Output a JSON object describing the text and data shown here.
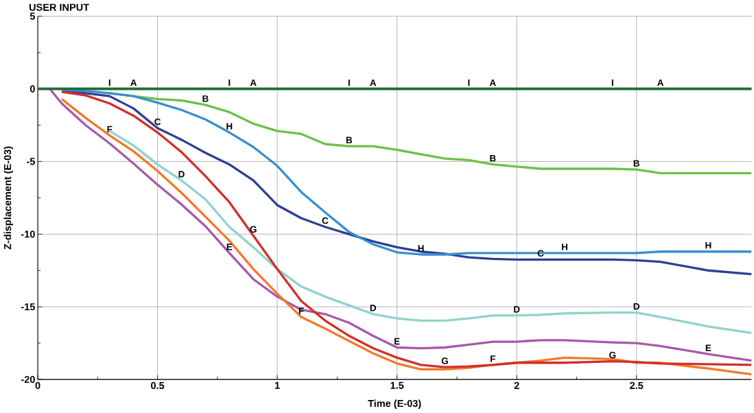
{
  "chart_data": {
    "type": "line",
    "title": "USER INPUT",
    "xlabel": "Time (E-03)",
    "ylabel": "Z-displacement (E-03)",
    "x": [
      0,
      0.05,
      0.1,
      0.2,
      0.3,
      0.4,
      0.5,
      0.6,
      0.7,
      0.8,
      0.9,
      1.0,
      1.1,
      1.2,
      1.3,
      1.4,
      1.5,
      1.6,
      1.7,
      1.8,
      1.9,
      2.0,
      2.1,
      2.2,
      2.4,
      2.5,
      2.6,
      2.8,
      2.98
    ],
    "xlim": [
      0,
      2.98
    ],
    "ylim": [
      -20,
      5
    ],
    "xticks": [
      0,
      0.5,
      1,
      1.5,
      2,
      2.5
    ],
    "yticks": [
      -20,
      -15,
      -10,
      -5,
      0,
      5
    ],
    "grid": true,
    "marker": "none",
    "line_style": "solid",
    "series": [
      {
        "name": "A",
        "color": "#1f6b32",
        "values": [
          0,
          0,
          0,
          0,
          0,
          0,
          0,
          0,
          0,
          0,
          0,
          0,
          0,
          0,
          0,
          0,
          0,
          0,
          0,
          0,
          0,
          0,
          0,
          0,
          0,
          0,
          0,
          0,
          0
        ]
      },
      {
        "name": "B",
        "color": "#6cc04a",
        "values": [
          null,
          null,
          null,
          null,
          -0.3,
          -0.5,
          -0.7,
          -0.8,
          -1.1,
          -1.6,
          -2.4,
          -2.9,
          -3.1,
          -3.8,
          -3.95,
          -3.95,
          -4.2,
          -4.5,
          -4.8,
          -4.9,
          -5.2,
          -5.35,
          -5.5,
          -5.5,
          -5.5,
          -5.55,
          -5.8,
          -5.8,
          -5.8
        ]
      },
      {
        "name": "C",
        "color": "#2e3f93",
        "values": [
          null,
          null,
          -0.1,
          -0.3,
          -0.5,
          -1.35,
          -2.7,
          -3.5,
          -4.4,
          -5.2,
          -6.3,
          -8.0,
          -8.9,
          -9.5,
          -10.0,
          -10.5,
          -10.9,
          -11.2,
          -11.35,
          -11.6,
          -11.7,
          -11.75,
          -11.75,
          -11.75,
          -11.75,
          -11.8,
          -11.9,
          -12.5,
          -12.75
        ]
      },
      {
        "name": "D",
        "color": "#8fd3cc",
        "values": [
          null,
          null,
          null,
          null,
          -2.9,
          -3.9,
          -5.2,
          -6.3,
          -7.6,
          -9.5,
          -10.9,
          -12.4,
          -13.6,
          -14.3,
          -14.9,
          -15.5,
          -15.8,
          -15.95,
          -15.95,
          -15.8,
          -15.6,
          -15.6,
          -15.55,
          -15.45,
          -15.4,
          -15.4,
          -15.7,
          -16.35,
          -16.8
        ]
      },
      {
        "name": "E",
        "color": "#a65aa8",
        "values": [
          null,
          0,
          -1.0,
          -2.5,
          -3.75,
          -5.15,
          -6.6,
          -7.95,
          -9.45,
          -11.3,
          -13.1,
          -14.3,
          -15.2,
          -15.5,
          -16.1,
          -17.0,
          -17.8,
          -17.85,
          -17.8,
          -17.6,
          -17.4,
          -17.4,
          -17.3,
          -17.3,
          -17.45,
          -17.5,
          -17.7,
          -18.25,
          -18.7
        ]
      },
      {
        "name": "F",
        "color": "#f07a2a",
        "values": [
          null,
          null,
          -0.7,
          -2.0,
          -3.2,
          -4.3,
          -5.65,
          -7.15,
          -8.8,
          -10.45,
          -12.4,
          -14.1,
          -15.7,
          -16.5,
          -17.35,
          -18.2,
          -18.9,
          -19.3,
          -19.3,
          -19.2,
          -19.0,
          -18.85,
          -18.7,
          -18.5,
          -18.6,
          -18.85,
          -18.85,
          -19.25,
          -19.65
        ]
      },
      {
        "name": "G",
        "color": "#d12f2a",
        "values": [
          null,
          null,
          -0.2,
          -0.45,
          -1.0,
          -1.85,
          -3.0,
          -4.35,
          -6.0,
          -7.8,
          -10.1,
          -12.4,
          -14.6,
          -15.95,
          -17.0,
          -17.85,
          -18.5,
          -19.0,
          -19.15,
          -19.1,
          -19.0,
          -18.85,
          -18.85,
          -18.85,
          -18.75,
          -18.8,
          -18.9,
          -18.95,
          -19.0
        ]
      },
      {
        "name": "H",
        "color": "#3a8fcf",
        "values": [
          null,
          null,
          -0.05,
          -0.15,
          -0.3,
          -0.5,
          -0.95,
          -1.45,
          -2.1,
          -3.0,
          -4.0,
          -5.3,
          -7.1,
          -8.5,
          -9.85,
          -10.7,
          -11.25,
          -11.4,
          -11.4,
          -11.3,
          -11.3,
          -11.3,
          -11.3,
          -11.3,
          -11.3,
          -11.3,
          -11.2,
          -11.2,
          -11.2
        ]
      },
      {
        "name": "I",
        "color": "#1f6b32",
        "values": [
          0,
          0,
          0,
          0,
          0,
          0,
          0,
          0,
          0,
          0,
          0,
          0,
          0,
          0,
          0,
          0,
          0,
          0,
          0,
          0,
          0,
          0,
          0,
          0,
          0,
          0,
          0,
          0,
          0
        ]
      }
    ]
  }
}
